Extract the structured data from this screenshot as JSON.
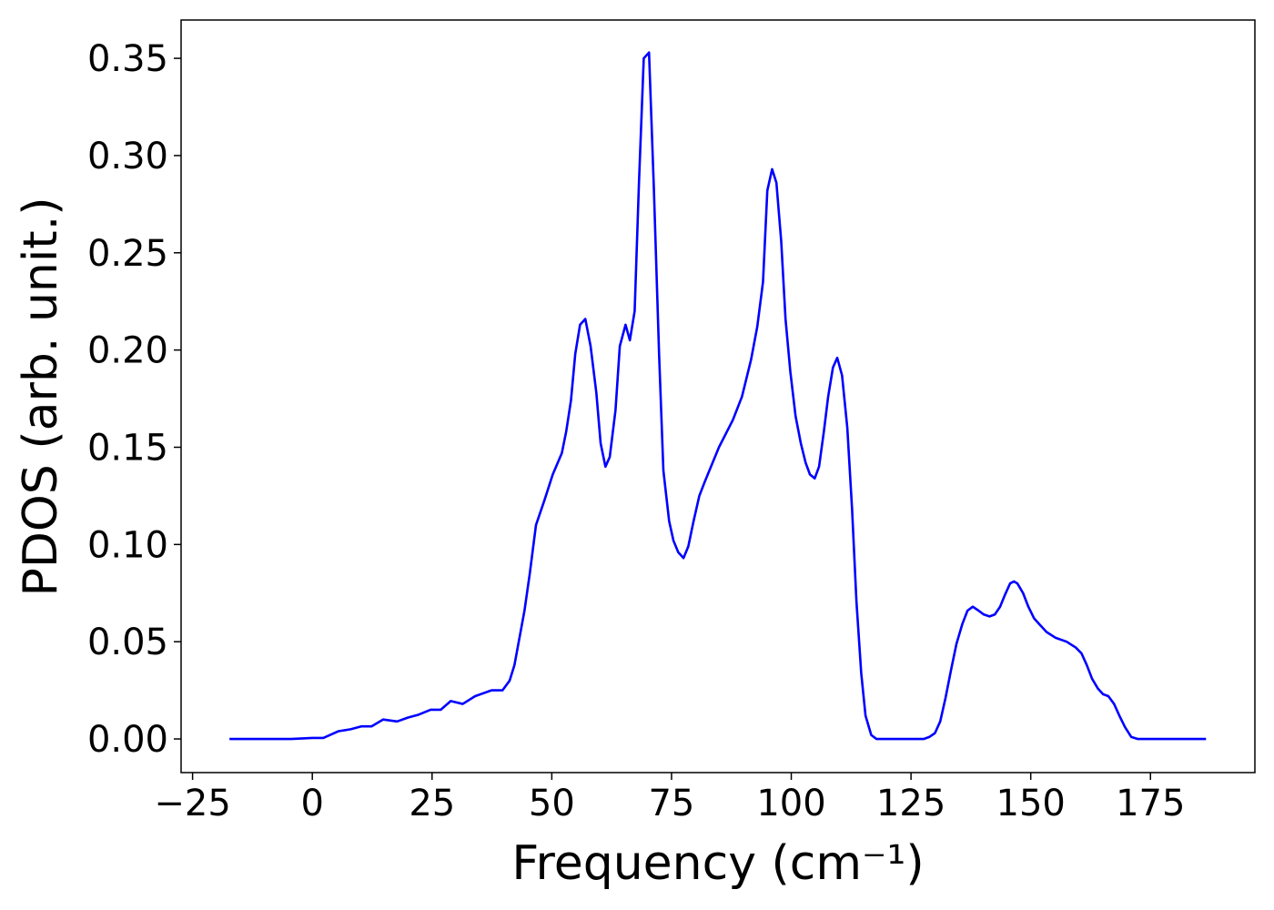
{
  "chart_data": {
    "type": "line",
    "xlabel": "Frequency (cm⁻¹)",
    "ylabel": "PDOS (arb. unit.)",
    "xlim": [
      -27.4,
      196.8
    ],
    "ylim": [
      -0.0173,
      0.3697
    ],
    "xticks": [
      {
        "value": -25,
        "label": "−25"
      },
      0,
      25,
      50,
      75,
      100,
      125,
      150,
      175
    ],
    "yticks": [
      {
        "value": 0,
        "label": "0.00"
      },
      {
        "value": 0.05,
        "label": "0.05"
      },
      {
        "value": 0.1,
        "label": "0.10"
      },
      {
        "value": 0.15,
        "label": "0.15"
      },
      {
        "value": 0.2,
        "label": "0.20"
      },
      {
        "value": 0.25,
        "label": "0.25"
      },
      {
        "value": 0.3,
        "label": "0.30"
      },
      {
        "value": 0.35,
        "label": "0.35"
      }
    ],
    "x": [
      -17.3,
      -4.4,
      0,
      2.3,
      5.5,
      8.0,
      10.3,
      12.4,
      14.8,
      17.7,
      20.0,
      22.2,
      24.7,
      26.8,
      28.9,
      31.4,
      34.0,
      37.4,
      39.7,
      41.2,
      42.2,
      43.1,
      44.3,
      45.4,
      46.7,
      48.5,
      50.2,
      52.1,
      53.0,
      54.0,
      54.9,
      55.9,
      57.0,
      58.1,
      59.3,
      60.2,
      61.2,
      62.1,
      63.3,
      64.2,
      65.4,
      66.3,
      67.3,
      68.2,
      69.2,
      70.3,
      71.3,
      72.4,
      73.3,
      74.5,
      75.4,
      76.4,
      77.5,
      78.5,
      79.6,
      80.8,
      81.9,
      84.9,
      87.8,
      89.7,
      91.6,
      92.9,
      94.1,
      95.0,
      96.0,
      96.9,
      97.9,
      98.8,
      99.8,
      100.9,
      102.0,
      103.0,
      103.9,
      104.9,
      105.8,
      106.8,
      107.7,
      108.7,
      109.6,
      110.6,
      111.7,
      112.7,
      113.6,
      114.6,
      115.5,
      116.7,
      117.8,
      127.7,
      128.8,
      130.0,
      131.1,
      132.2,
      133.4,
      134.5,
      135.7,
      136.8,
      137.9,
      139.1,
      140.2,
      141.4,
      142.5,
      143.6,
      144.6,
      145.7,
      146.5,
      147.2,
      148.4,
      149.5,
      150.7,
      151.8,
      153.3,
      155.2,
      157.5,
      159.4,
      160.6,
      161.7,
      162.8,
      164.0,
      165.1,
      166.2,
      167.4,
      168.5,
      169.7,
      171.0,
      172.3,
      186.6
    ],
    "series": [
      {
        "name": "PDOS",
        "color": "#0000ff",
        "values": [
          0,
          0,
          0.0005,
          0.0005,
          0.004,
          0.005,
          0.0065,
          0.0065,
          0.01,
          0.009,
          0.011,
          0.0125,
          0.015,
          0.015,
          0.0195,
          0.018,
          0.022,
          0.025,
          0.025,
          0.03,
          0.038,
          0.05,
          0.066,
          0.085,
          0.11,
          0.123,
          0.136,
          0.147,
          0.158,
          0.174,
          0.198,
          0.213,
          0.216,
          0.202,
          0.178,
          0.152,
          0.14,
          0.145,
          0.169,
          0.202,
          0.213,
          0.205,
          0.22,
          0.286,
          0.35,
          0.353,
          0.284,
          0.198,
          0.138,
          0.112,
          0.102,
          0.096,
          0.093,
          0.099,
          0.112,
          0.125,
          0.132,
          0.15,
          0.164,
          0.176,
          0.195,
          0.212,
          0.235,
          0.282,
          0.293,
          0.286,
          0.256,
          0.216,
          0.189,
          0.166,
          0.152,
          0.142,
          0.136,
          0.134,
          0.14,
          0.158,
          0.176,
          0.191,
          0.196,
          0.187,
          0.16,
          0.118,
          0.071,
          0.034,
          0.012,
          0.002,
          0,
          0,
          0.001,
          0.003,
          0.009,
          0.021,
          0.036,
          0.049,
          0.059,
          0.066,
          0.068,
          0.066,
          0.064,
          0.063,
          0.064,
          0.068,
          0.074,
          0.08,
          0.081,
          0.08,
          0.075,
          0.068,
          0.062,
          0.059,
          0.055,
          0.052,
          0.05,
          0.047,
          0.044,
          0.038,
          0.031,
          0.026,
          0.023,
          0.022,
          0.018,
          0.012,
          0.006,
          0.001,
          0,
          0
        ]
      }
    ]
  }
}
